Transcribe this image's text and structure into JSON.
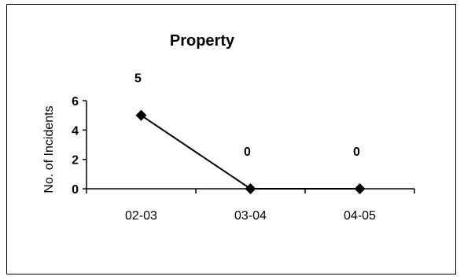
{
  "chart_data": {
    "type": "line",
    "title": "Property",
    "xlabel": "",
    "ylabel": "No. of Incidents",
    "categories": [
      "02-03",
      "03-04",
      "04-05"
    ],
    "values": [
      5,
      0,
      0
    ],
    "data_labels": [
      "5",
      "0",
      "0"
    ],
    "ylim": [
      0,
      6
    ],
    "yticks": [
      "0",
      "2",
      "4",
      "6"
    ],
    "grid": false,
    "legend": "none",
    "line_color": "#000000",
    "marker": "diamond"
  }
}
